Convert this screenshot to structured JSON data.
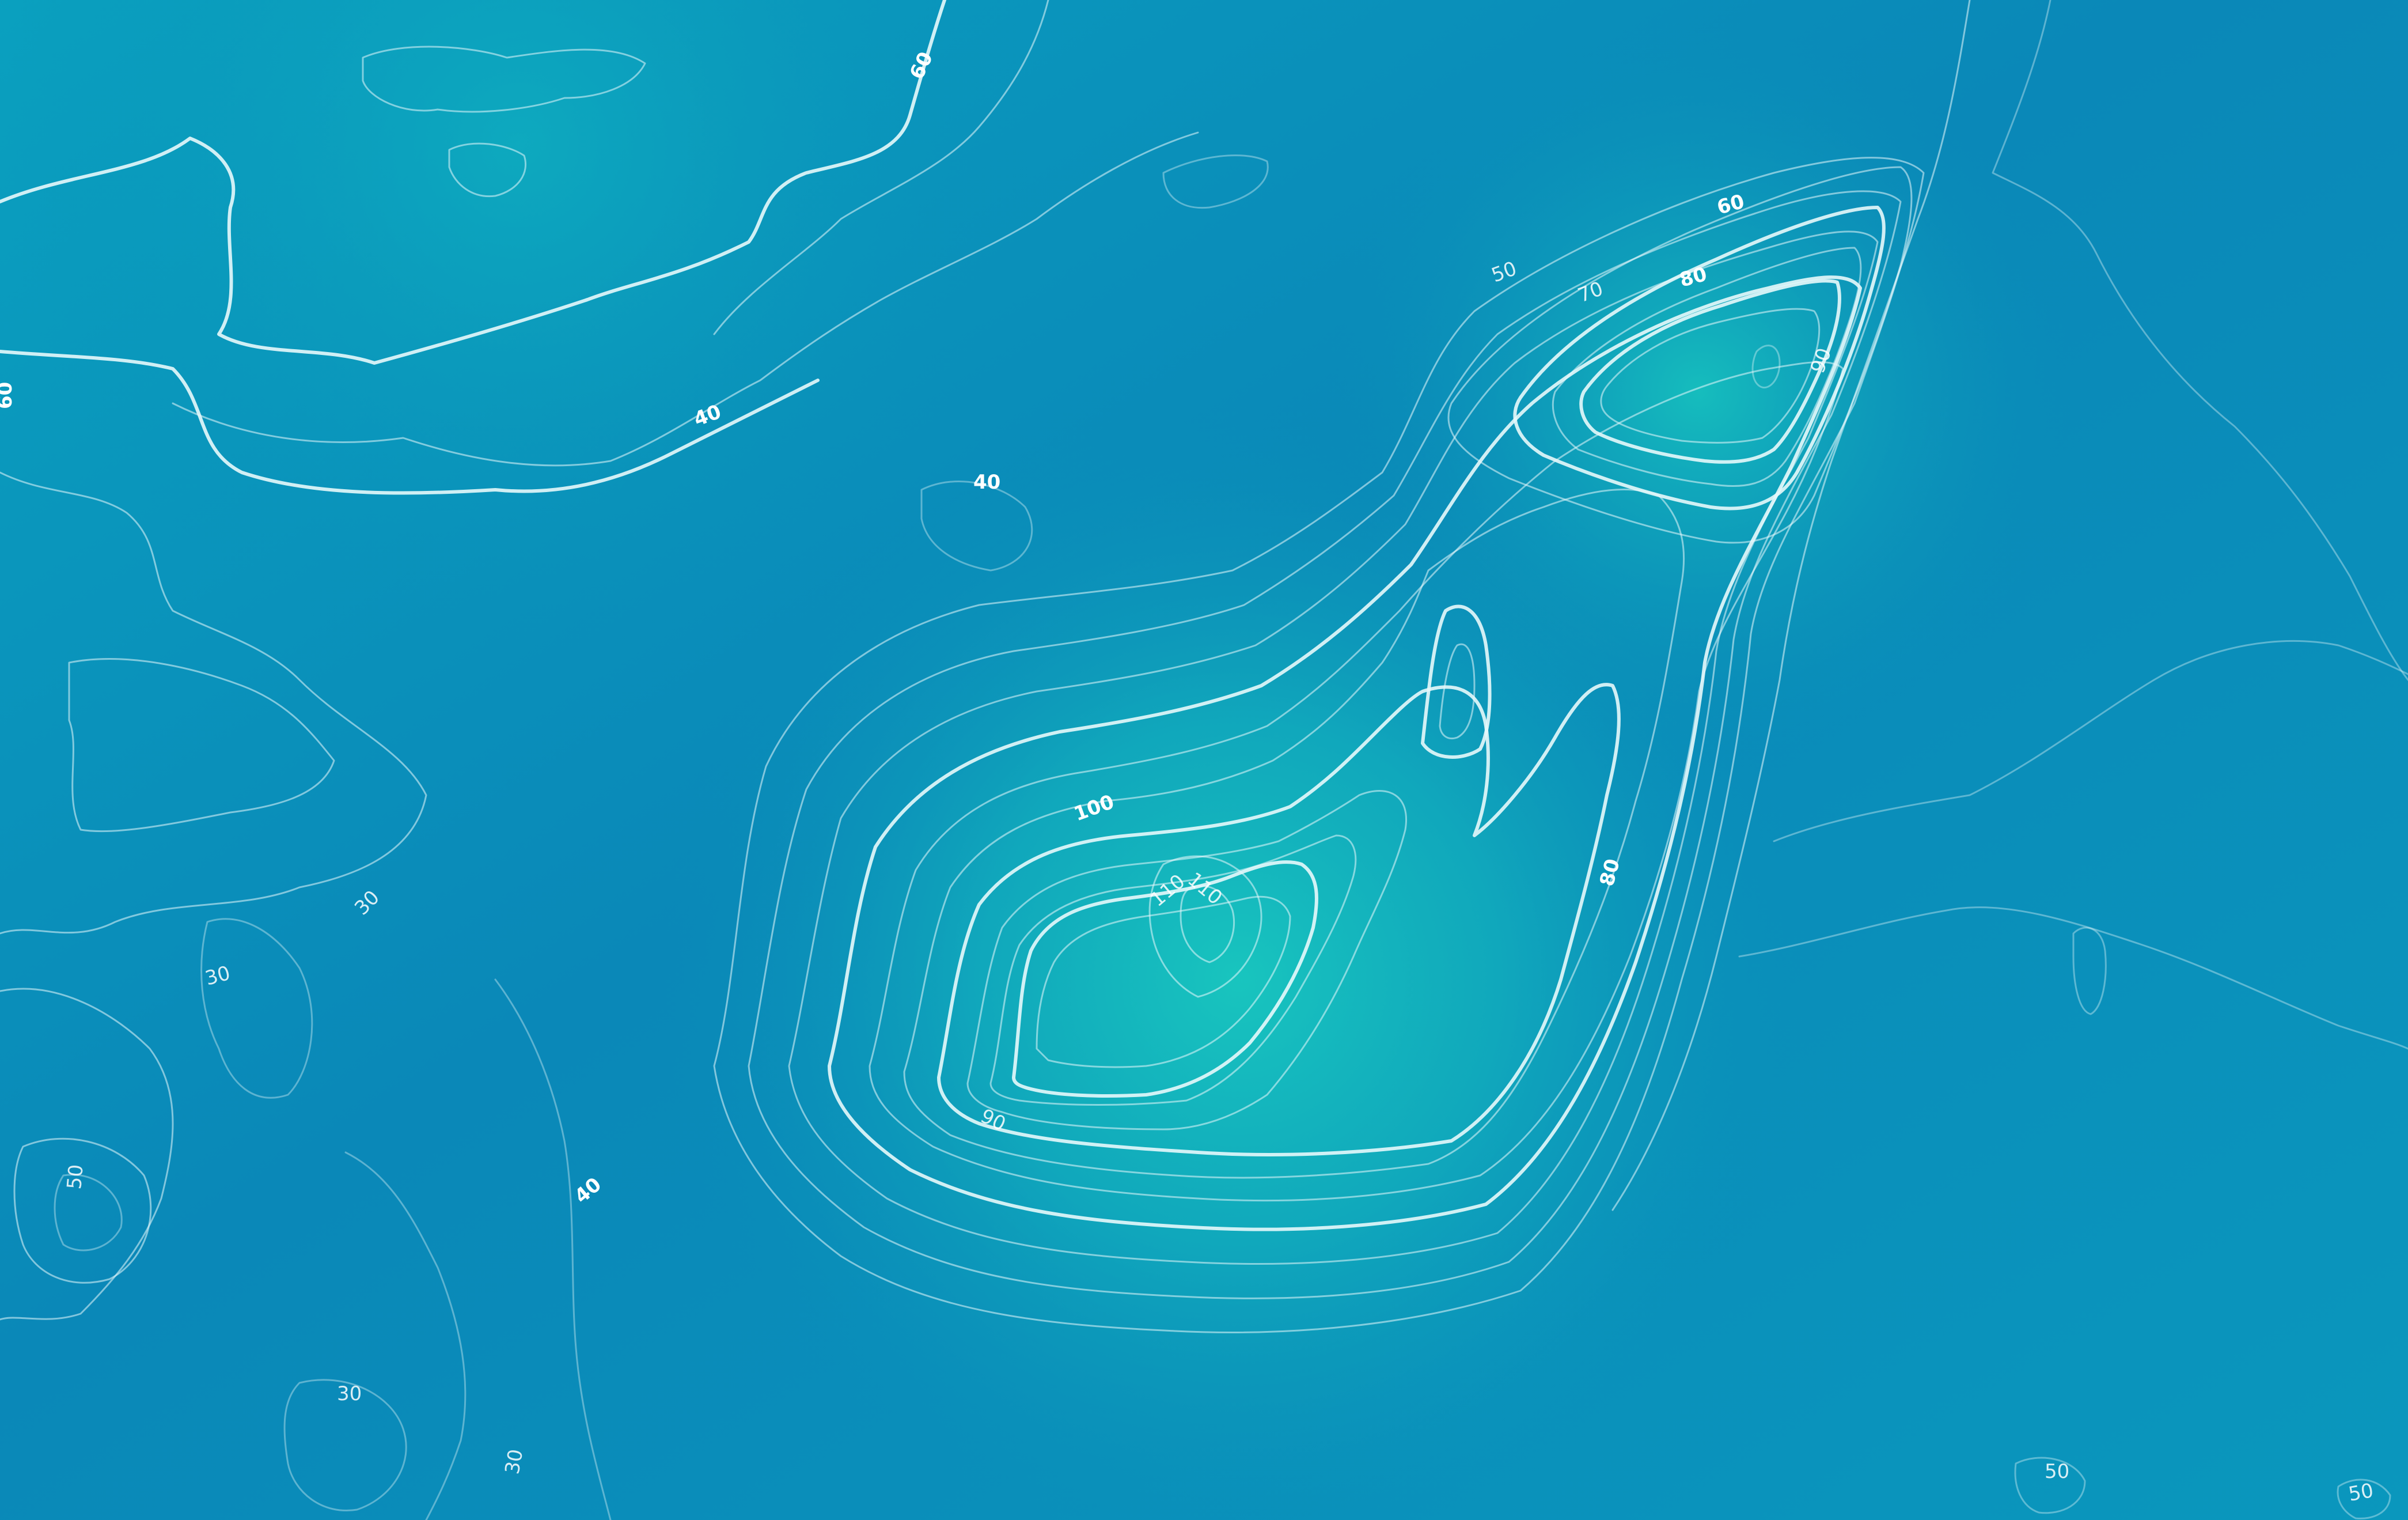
{
  "map": {
    "colors": {
      "deep": "#0a86b6",
      "shallow": "#17c3bf",
      "line": "#e6f8fb"
    },
    "labels": [
      {
        "id": "l60a",
        "text": "60",
        "weight": "bold"
      },
      {
        "id": "l60b",
        "text": "60",
        "weight": "bold"
      },
      {
        "id": "l40a",
        "text": "40",
        "weight": "bold"
      },
      {
        "id": "l40b",
        "text": "40",
        "weight": "bold"
      },
      {
        "id": "l40c",
        "text": "40",
        "weight": "bold"
      },
      {
        "id": "l30a",
        "text": "30",
        "weight": "normal"
      },
      {
        "id": "l30b",
        "text": "30",
        "weight": "normal"
      },
      {
        "id": "l30c",
        "text": "30",
        "weight": "normal"
      },
      {
        "id": "l30d",
        "text": "30",
        "weight": "normal"
      },
      {
        "id": "l50a",
        "text": "50",
        "weight": "normal"
      },
      {
        "id": "l50b",
        "text": "50",
        "weight": "normal"
      },
      {
        "id": "l50c",
        "text": "50",
        "weight": "normal"
      },
      {
        "id": "l50d",
        "text": "50",
        "weight": "normal"
      },
      {
        "id": "l60c",
        "text": "60",
        "weight": "bold"
      },
      {
        "id": "l70",
        "text": "70",
        "weight": "normal"
      },
      {
        "id": "l80a",
        "text": "80",
        "weight": "bold"
      },
      {
        "id": "l90a",
        "text": "90",
        "weight": "normal"
      },
      {
        "id": "l100",
        "text": "100",
        "weight": "bold"
      },
      {
        "id": "l110a",
        "text": "110",
        "weight": "normal"
      },
      {
        "id": "l110b",
        "text": "110",
        "weight": "normal"
      },
      {
        "id": "l90b",
        "text": "90",
        "weight": "normal"
      },
      {
        "id": "l80b",
        "text": "80",
        "weight": "bold"
      }
    ]
  }
}
